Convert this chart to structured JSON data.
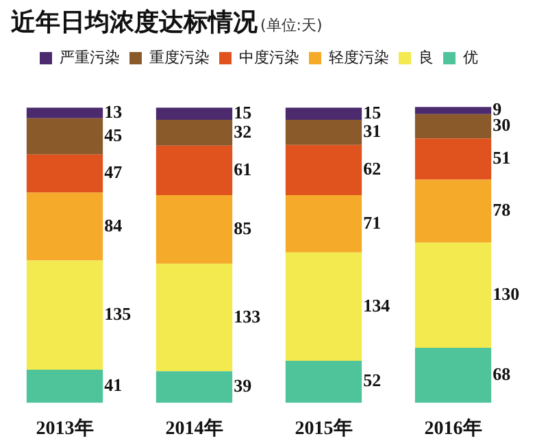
{
  "chart_data": {
    "type": "bar",
    "title": "近年日均浓度达标情况",
    "subtitle": "(单位:天)",
    "categories": [
      "2013年",
      "2014年",
      "2015年",
      "2016年"
    ],
    "stacked": true,
    "data_labels": true,
    "legend": "top",
    "grid": false,
    "series": [
      {
        "name": "优",
        "color": "#4fc49a",
        "values": [
          41,
          39,
          52,
          68
        ]
      },
      {
        "name": "良",
        "color": "#f2ea4e",
        "values": [
          135,
          133,
          134,
          130
        ]
      },
      {
        "name": "轻度污染",
        "color": "#f5aa2a",
        "values": [
          84,
          85,
          71,
          78
        ]
      },
      {
        "name": "中度污染",
        "color": "#e0531f",
        "values": [
          47,
          61,
          62,
          51
        ]
      },
      {
        "name": "重度污染",
        "color": "#8a5a2b",
        "values": [
          45,
          32,
          31,
          30
        ]
      },
      {
        "name": "严重污染",
        "color": "#4b2a6e",
        "values": [
          13,
          15,
          15,
          9
        ]
      }
    ]
  }
}
